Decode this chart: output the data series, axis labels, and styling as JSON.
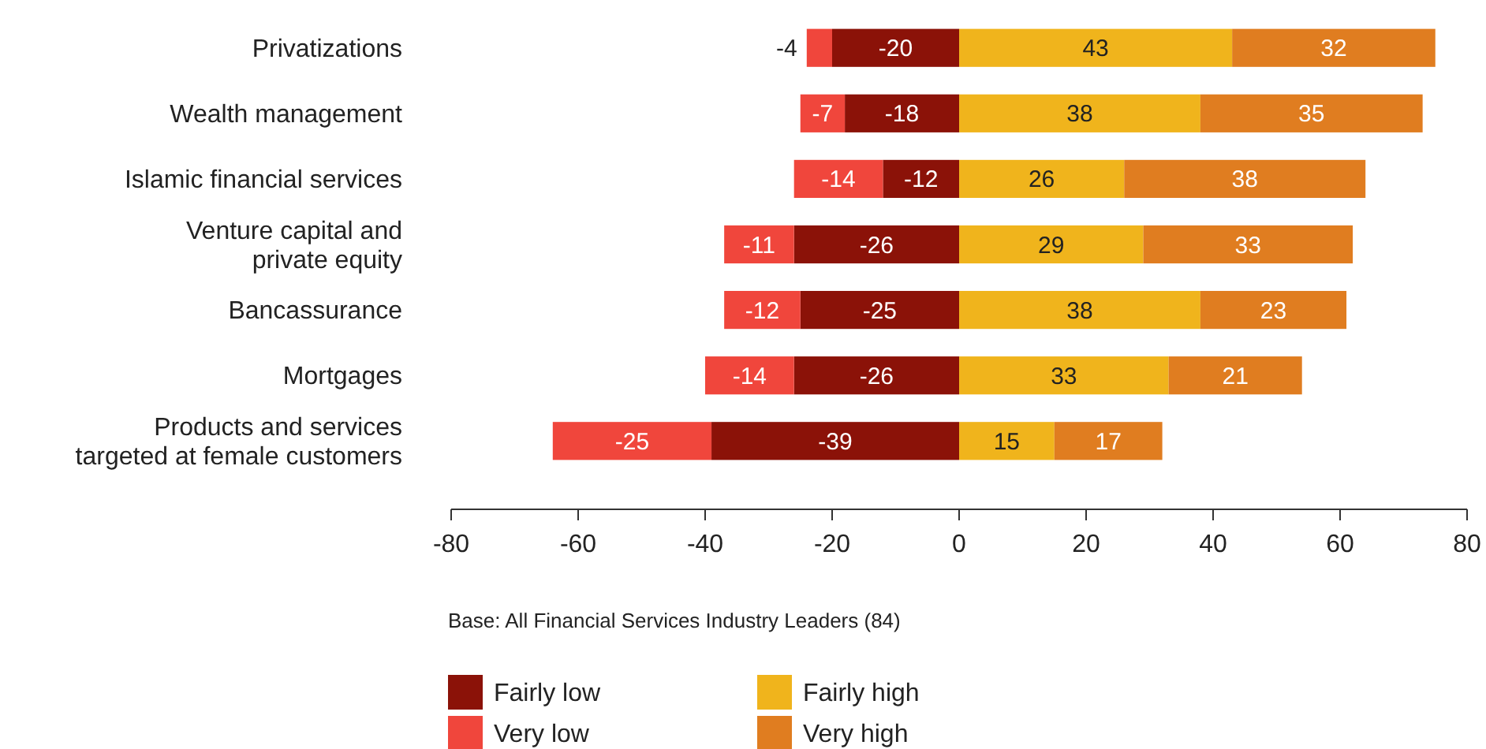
{
  "chart_data": {
    "type": "bar",
    "orientation": "horizontal",
    "stacked": true,
    "data_labels": true,
    "legend": "bottom left",
    "grid": false,
    "categories": [
      "Privatizations",
      "Wealth management",
      "Islamic financial services",
      "Venture capital and\nprivate equity",
      "Bancassurance",
      "Mortgages",
      "Products and services\ntargeted at female customers"
    ],
    "series": [
      {
        "name": "Fairly low",
        "color": "#8b1208",
        "values": [
          -20,
          -18,
          -12,
          -26,
          -25,
          -26,
          -39
        ]
      },
      {
        "name": "Very low",
        "color": "#f0463c",
        "values": [
          -4,
          -7,
          -14,
          -11,
          -12,
          -14,
          -25
        ]
      },
      {
        "name": "Fairly high",
        "color": "#f0b41c",
        "values": [
          43,
          38,
          26,
          29,
          38,
          33,
          15
        ]
      },
      {
        "name": "Very high",
        "color": "#e07d20",
        "values": [
          32,
          35,
          38,
          33,
          23,
          21,
          17
        ]
      }
    ],
    "xlim": [
      -80,
      80
    ],
    "xticks": [
      -80,
      -60,
      -40,
      -20,
      0,
      20,
      40,
      60,
      80
    ],
    "annotations": [
      "Base: All Financial Services Industry Leaders (84)"
    ]
  }
}
